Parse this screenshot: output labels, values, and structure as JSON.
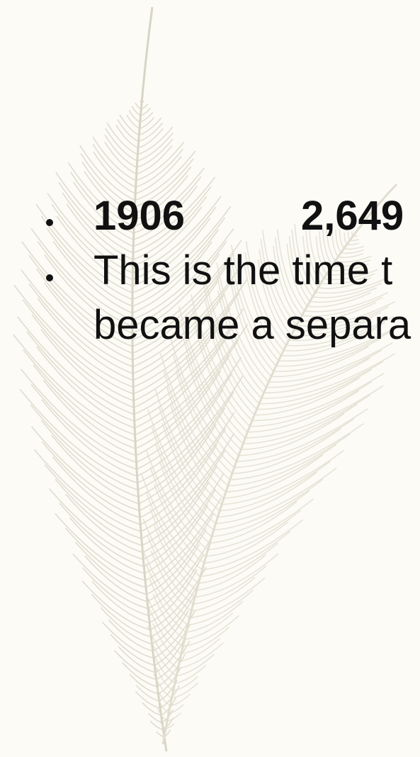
{
  "slide": {
    "bullets": [
      {
        "parts": [
          "1906",
          "2,649"
        ]
      },
      {
        "lines": [
          "This is the time t",
          "became a separa"
        ]
      }
    ]
  }
}
